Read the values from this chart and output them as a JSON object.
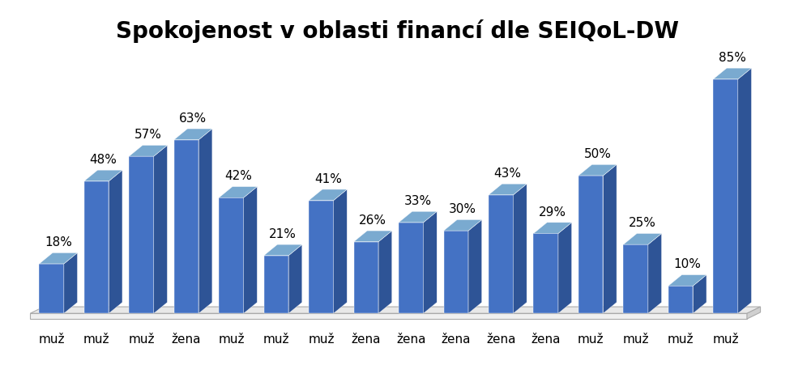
{
  "title": "Spokojenost v oblasti financí dle SEIQoL-DW",
  "categories": [
    "muž",
    "muž",
    "muž",
    "žena",
    "muž",
    "muž",
    "muž",
    "žena",
    "žena",
    "žena",
    "žena",
    "žena",
    "muž",
    "muž",
    "muž",
    "muž"
  ],
  "values": [
    18,
    48,
    57,
    63,
    42,
    21,
    41,
    26,
    33,
    30,
    43,
    29,
    50,
    25,
    10,
    85
  ],
  "bar_color_front": "#4472C4",
  "bar_color_right": "#2E5496",
  "bar_color_top": "#7AAAD0",
  "floor_color": "#D9D9D9",
  "floor_edge_color": "#AAAAAA",
  "background_color": "#ffffff",
  "title_fontsize": 20,
  "tick_fontsize": 11,
  "value_fontsize": 11,
  "depth": 0.3,
  "bar_width": 0.55,
  "ylim": [
    0,
    95
  ]
}
